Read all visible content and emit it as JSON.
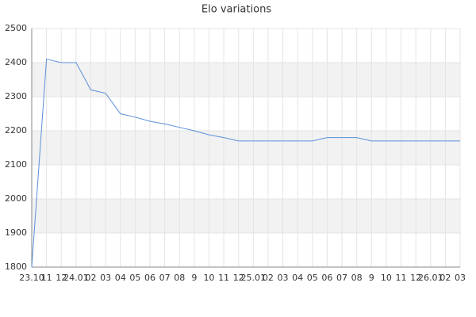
{
  "chart_data": {
    "type": "line",
    "title": "Elo variations",
    "categories": [
      "23.10",
      "11",
      "12",
      "24.01",
      "02",
      "03",
      "04",
      "05",
      "06",
      "07",
      "08",
      "9",
      "10",
      "11",
      "12",
      "25.01",
      "02",
      "03",
      "04",
      "05",
      "06",
      "07",
      "08",
      "9",
      "10",
      "11",
      "12",
      "26.01",
      "02",
      "03"
    ],
    "series": [
      {
        "name": "Elo",
        "color": "#5b8fd9",
        "values": [
          1800,
          2410,
          2400,
          2400,
          2320,
          2310,
          2250,
          2240,
          2228,
          2220,
          2210,
          2200,
          2188,
          2180,
          2170,
          2170,
          2170,
          2170,
          2170,
          2170,
          2180,
          2180,
          2180,
          2170,
          2170,
          2170,
          2170,
          2170,
          2170,
          2170
        ]
      }
    ],
    "ylim": [
      1800,
      2500
    ],
    "yticks": [
      1800,
      1900,
      2000,
      2100,
      2200,
      2300,
      2400,
      2500
    ],
    "grid": true
  }
}
